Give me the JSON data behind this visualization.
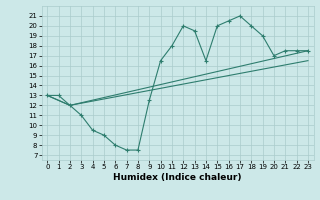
{
  "xlabel": "Humidex (Indice chaleur)",
  "bg_color": "#cce8e8",
  "grid_color": "#aacccc",
  "line_color": "#2e7d6e",
  "xlim": [
    -0.5,
    23.5
  ],
  "ylim": [
    6.5,
    22
  ],
  "xticks": [
    0,
    1,
    2,
    3,
    4,
    5,
    6,
    7,
    8,
    9,
    10,
    11,
    12,
    13,
    14,
    15,
    16,
    17,
    18,
    19,
    20,
    21,
    22,
    23
  ],
  "yticks": [
    7,
    8,
    9,
    10,
    11,
    12,
    13,
    14,
    15,
    16,
    17,
    18,
    19,
    20,
    21
  ],
  "line1_x": [
    0,
    1,
    2,
    3,
    4,
    5,
    6,
    7,
    8,
    9,
    10,
    11,
    12,
    13,
    14,
    15,
    16,
    17,
    18,
    19,
    20,
    21,
    22,
    23
  ],
  "line1_y": [
    13.0,
    13.0,
    12.0,
    11.0,
    9.5,
    9.0,
    8.0,
    7.5,
    7.5,
    12.5,
    16.5,
    18.0,
    20.0,
    19.5,
    16.5,
    20.0,
    20.5,
    21.0,
    20.0,
    19.0,
    17.0,
    17.5,
    17.5,
    17.5
  ],
  "line2_x": [
    0,
    2,
    23
  ],
  "line2_y": [
    13.0,
    12.0,
    17.5
  ],
  "line3_x": [
    0,
    2,
    23
  ],
  "line3_y": [
    13.0,
    12.0,
    16.5
  ],
  "tick_fontsize": 5.0,
  "xlabel_fontsize": 6.5
}
